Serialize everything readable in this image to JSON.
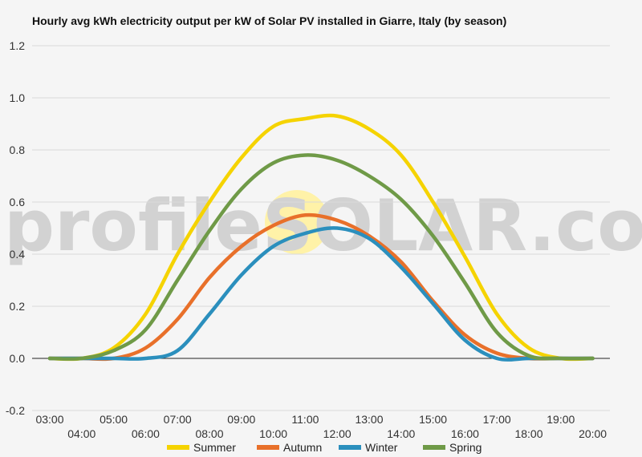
{
  "chart_data": {
    "type": "line",
    "title": "Hourly avg kWh electricity output per kW of Solar PV installed in Giarre, Italy (by season)",
    "xlabel": "",
    "ylabel": "",
    "ylim": [
      -0.2,
      1.2
    ],
    "yticks": [
      "1.2",
      "1.0",
      "0.8",
      "0.6",
      "0.4",
      "0.2",
      "0.0",
      "-0.2"
    ],
    "ytick_values": [
      1.2,
      1.0,
      0.8,
      0.6,
      0.4,
      0.2,
      0.0,
      -0.2
    ],
    "categories": [
      "03:00",
      "04:00",
      "05:00",
      "06:00",
      "07:00",
      "08:00",
      "09:00",
      "10:00",
      "11:00",
      "12:00",
      "13:00",
      "14:00",
      "15:00",
      "16:00",
      "17:00",
      "18:00",
      "19:00",
      "20:00"
    ],
    "grid": true,
    "legend_position": "bottom",
    "series": [
      {
        "name": "Summer",
        "color": "#f5d300",
        "values": [
          0.0,
          0.0,
          0.04,
          0.17,
          0.4,
          0.6,
          0.77,
          0.89,
          0.92,
          0.93,
          0.88,
          0.78,
          0.6,
          0.39,
          0.17,
          0.04,
          0.0,
          0.0
        ]
      },
      {
        "name": "Autumn",
        "color": "#e8702a",
        "values": [
          0.0,
          0.0,
          0.0,
          0.04,
          0.15,
          0.31,
          0.43,
          0.51,
          0.55,
          0.53,
          0.47,
          0.37,
          0.22,
          0.09,
          0.02,
          0.0,
          0.0,
          0.0
        ]
      },
      {
        "name": "Winter",
        "color": "#2b8fbd",
        "values": [
          0.0,
          0.0,
          0.0,
          0.0,
          0.03,
          0.17,
          0.32,
          0.43,
          0.48,
          0.5,
          0.46,
          0.35,
          0.21,
          0.07,
          0.0,
          0.0,
          0.0,
          0.0
        ]
      },
      {
        "name": "Spring",
        "color": "#6f9a47",
        "values": [
          0.0,
          0.0,
          0.03,
          0.11,
          0.3,
          0.49,
          0.65,
          0.75,
          0.78,
          0.76,
          0.7,
          0.61,
          0.47,
          0.29,
          0.1,
          0.01,
          0.0,
          0.0
        ]
      }
    ]
  },
  "watermark": {
    "text": "profileSOLAR.com",
    "sun_color": "#fff2a8"
  }
}
